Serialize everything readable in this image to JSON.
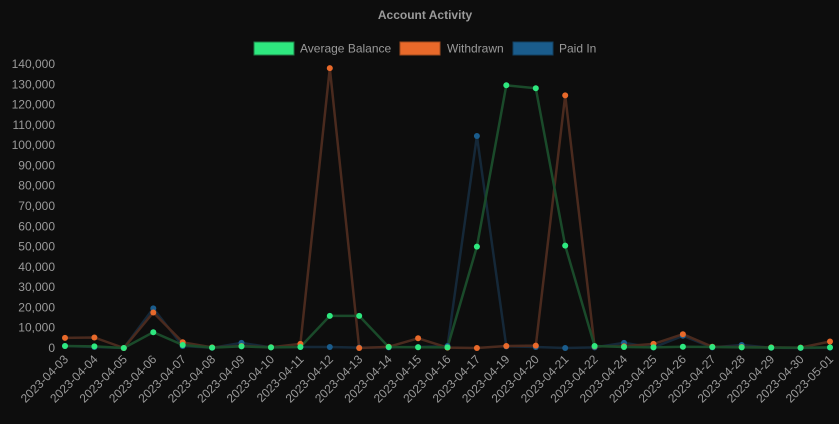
{
  "chart_data": {
    "type": "line",
    "title": "Account Activity",
    "categories": [
      "2023-04-03",
      "2023-04-04",
      "2023-04-05",
      "2023-04-06",
      "2023-04-07",
      "2023-04-08",
      "2023-04-09",
      "2023-04-10",
      "2023-04-11",
      "2023-04-12",
      "2023-04-13",
      "2023-04-14",
      "2023-04-15",
      "2023-04-16",
      "2023-04-17",
      "2023-04-19",
      "2023-04-20",
      "2023-04-21",
      "2023-04-22",
      "2023-04-24",
      "2023-04-25",
      "2023-04-26",
      "2023-04-27",
      "2023-04-28",
      "2023-04-29",
      "2023-04-30",
      "2023-05-01"
    ],
    "ylim": [
      0,
      140000
    ],
    "yticks": [
      "0",
      "10,000",
      "20,000",
      "30,000",
      "40,000",
      "50,000",
      "60,000",
      "70,000",
      "80,000",
      "90,000",
      "100,000",
      "110,000",
      "120,000",
      "130,000",
      "140,000"
    ],
    "ytick_values": [
      0,
      10000,
      20000,
      30000,
      40000,
      50000,
      60000,
      70000,
      80000,
      90000,
      100000,
      110000,
      120000,
      130000,
      140000
    ],
    "legend_position": "top",
    "grid": false,
    "series": [
      {
        "name": "Average Balance",
        "color": "#2ee87f",
        "line_color": "#1a4a2a",
        "values": [
          1000,
          800,
          0,
          7800,
          1500,
          200,
          800,
          300,
          500,
          15800,
          15800,
          500,
          400,
          300,
          50000,
          129500,
          128000,
          50500,
          1000,
          500,
          300,
          600,
          500,
          300,
          200,
          100,
          300
        ]
      },
      {
        "name": "Withdrawn",
        "color": "#e8692a",
        "line_color": "#4a2a1e",
        "values": [
          5000,
          5200,
          0,
          17500,
          2800,
          300,
          1000,
          400,
          2000,
          138000,
          0,
          600,
          4800,
          200,
          0,
          1000,
          1200,
          124500,
          800,
          900,
          2000,
          6800,
          600,
          500,
          300,
          200,
          3200
        ]
      },
      {
        "name": "Paid In",
        "color": "#1a5c8c",
        "line_color": "#152838",
        "values": [
          1000,
          500,
          0,
          19500,
          1000,
          100,
          2500,
          300,
          500,
          500,
          200,
          300,
          500,
          1000,
          104500,
          800,
          500,
          0,
          300,
          2500,
          300,
          6000,
          300,
          1500,
          100,
          0,
          200
        ]
      }
    ]
  }
}
